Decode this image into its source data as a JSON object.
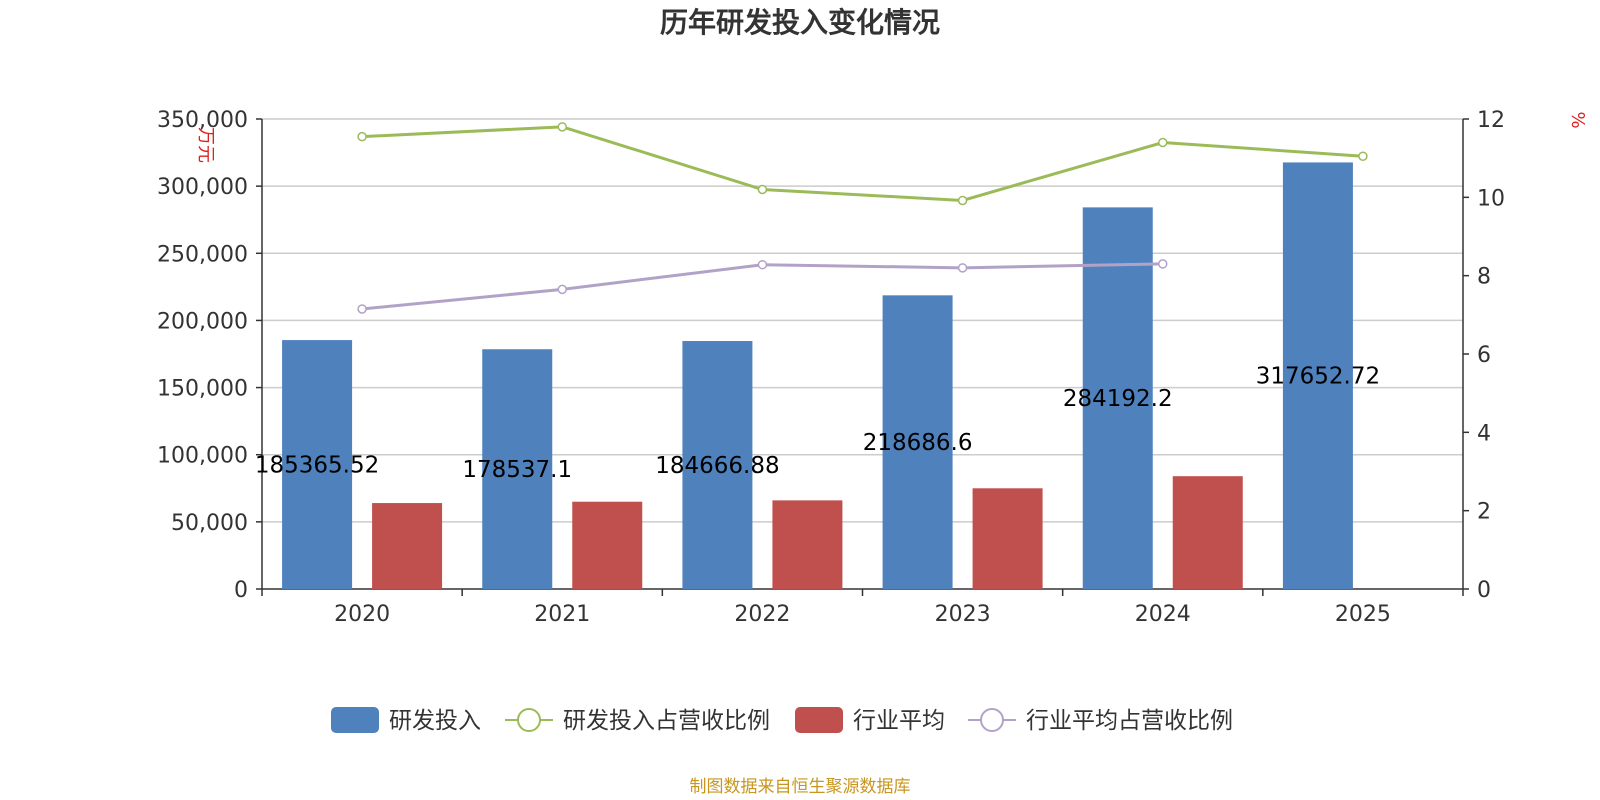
{
  "chart_data": {
    "type": "bar",
    "title": "历年研发投入变化情况",
    "categories": [
      "2020",
      "2021",
      "2022",
      "2023",
      "2024",
      "2025"
    ],
    "y_left": {
      "unit": "万元",
      "range": [
        0,
        350000
      ],
      "ticks": [
        "0",
        "50,000",
        "100,000",
        "150,000",
        "200,000",
        "250,000",
        "300,000",
        "350,000"
      ]
    },
    "y_right": {
      "unit": "%",
      "range": [
        0,
        12
      ],
      "ticks": [
        "0",
        "2",
        "4",
        "6",
        "8",
        "10",
        "12"
      ]
    },
    "grid": true,
    "legend_position": "bottom",
    "series": [
      {
        "name": "研发投入",
        "type": "bar",
        "axis": "left",
        "color": "#4f81bd",
        "values": [
          185365.52,
          178537.1,
          184666.88,
          218686.6,
          284192.2,
          317652.72
        ],
        "labels": [
          "185365.52",
          "178537.1",
          "184666.88",
          "218686.6",
          "284192.2",
          "317652.72"
        ]
      },
      {
        "name": "研发投入占营收比例",
        "type": "line",
        "axis": "right",
        "color": "#9bbb59",
        "values": [
          11.55,
          11.8,
          10.2,
          9.92,
          11.4,
          11.05
        ]
      },
      {
        "name": "行业平均",
        "type": "bar",
        "axis": "left",
        "color": "#c0504d",
        "values": [
          64000,
          65000,
          66000,
          75000,
          84000,
          null
        ]
      },
      {
        "name": "行业平均占营收比例",
        "type": "line",
        "axis": "right",
        "color": "#b3a2c7",
        "values": [
          7.15,
          7.65,
          8.28,
          8.2,
          8.3,
          null
        ]
      }
    ],
    "source": "制图数据来自恒生聚源数据库"
  }
}
